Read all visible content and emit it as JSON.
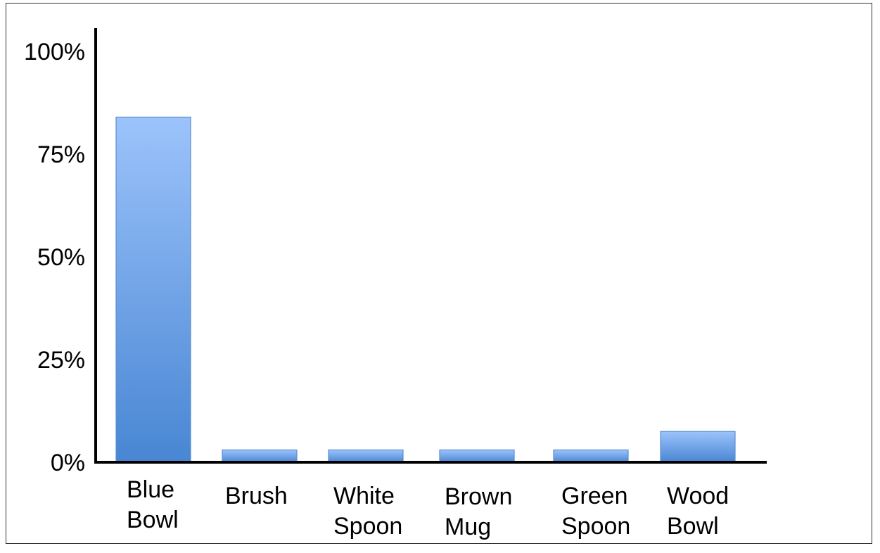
{
  "chart_data": {
    "type": "bar",
    "title": "",
    "xlabel": "",
    "ylabel": "",
    "categories": [
      [
        "Blue",
        "Bowl"
      ],
      [
        "Brush"
      ],
      [
        "White",
        "Spoon"
      ],
      [
        "Brown",
        "Mug"
      ],
      [
        "Green",
        "Spoon"
      ],
      [
        "Wood",
        "Bowl"
      ]
    ],
    "values": [
      84,
      3,
      3,
      3,
      3,
      7.5
    ],
    "ylim": [
      0,
      100
    ],
    "yticks": [
      {
        "value": 0,
        "label": "0%"
      },
      {
        "value": 25,
        "label": "25%"
      },
      {
        "value": 50,
        "label": "50%"
      },
      {
        "value": 75,
        "label": "75%"
      },
      {
        "value": 100,
        "label": "100%"
      }
    ],
    "grid": false,
    "legend": "none",
    "colors": {
      "bar_top": "#9cc3fb",
      "bar_bottom": "#4886d3",
      "bar_stroke": "#5b8ed0",
      "axis": "#000000"
    }
  }
}
